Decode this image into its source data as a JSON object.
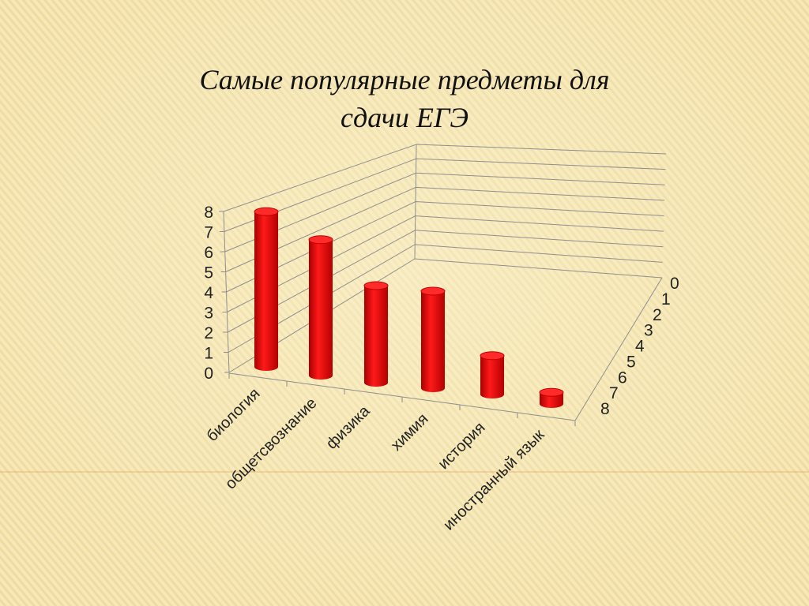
{
  "slide": {
    "title_line1": "Самые популярные предметы для",
    "title_line2": "сдачи ЕГЭ"
  },
  "chart_data": {
    "type": "bar",
    "style": "3d-cylinder",
    "title": "Самые популярные предметы для сдачи ЕГЭ",
    "categories": [
      "биология",
      "общетсвознание",
      "физика",
      "химия",
      "история",
      "иностранный язык"
    ],
    "series": [
      {
        "values": [
          8,
          7,
          5,
          5,
          2,
          0.6
        ]
      }
    ],
    "ylim": [
      0,
      8
    ],
    "y_ticks": [
      "0",
      "1",
      "2",
      "3",
      "4",
      "5",
      "6",
      "7",
      "8"
    ],
    "depth_ticks": [
      "0",
      "1",
      "2",
      "3",
      "4",
      "5",
      "6",
      "7",
      "8"
    ],
    "grid": true,
    "bar_color": "#e60000"
  }
}
